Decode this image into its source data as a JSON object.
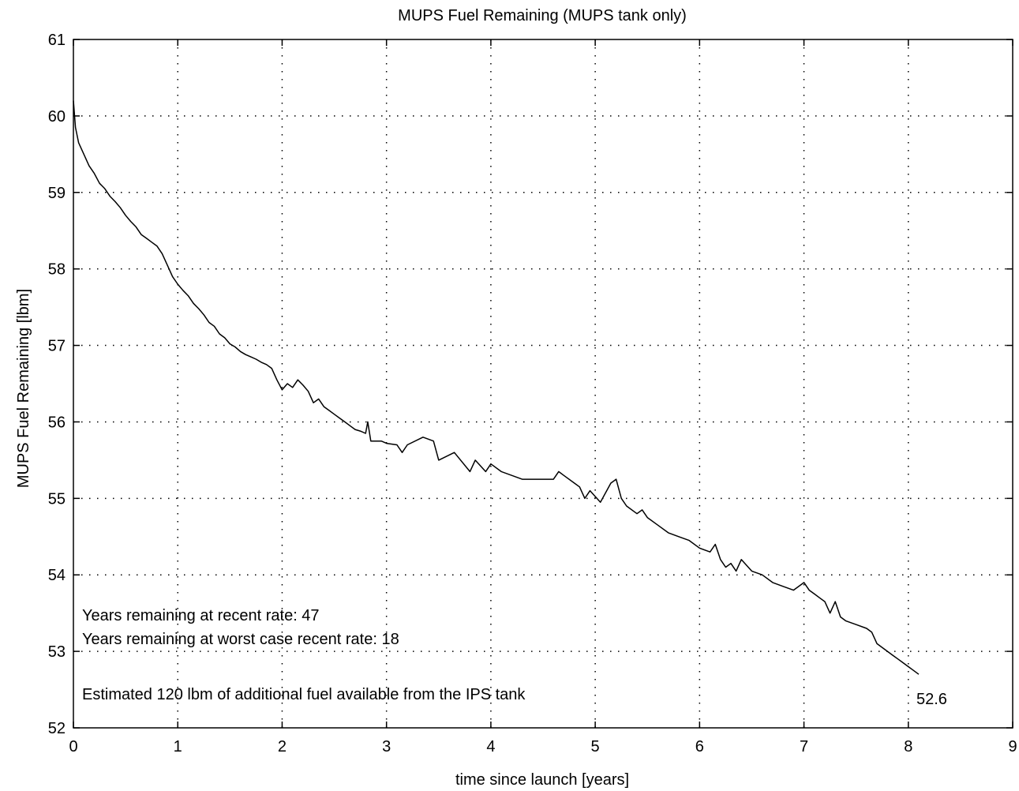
{
  "chart_data": {
    "type": "line",
    "title": "MUPS Fuel Remaining (MUPS tank only)",
    "xlabel": "time since launch [years]",
    "ylabel": "MUPS Fuel Remaining [lbm]",
    "xlim": [
      0,
      9
    ],
    "ylim": [
      52,
      61
    ],
    "xticks": [
      0,
      1,
      2,
      3,
      4,
      5,
      6,
      7,
      8,
      9
    ],
    "yticks": [
      52,
      53,
      54,
      55,
      56,
      57,
      58,
      59,
      60,
      61
    ],
    "grid": true,
    "grid_style": "dotted",
    "series": [
      {
        "style": "solid",
        "x": [
          0.0,
          0.02,
          0.05,
          0.1,
          0.15,
          0.2,
          0.25,
          0.3,
          0.35,
          0.4,
          0.45,
          0.5,
          0.55,
          0.6,
          0.65,
          0.7,
          0.75,
          0.8,
          0.85,
          0.9,
          0.95,
          1.0,
          1.05,
          1.1,
          1.15,
          1.2,
          1.25,
          1.3,
          1.35,
          1.4,
          1.45,
          1.5,
          1.55,
          1.6,
          1.65,
          1.7,
          1.75,
          1.8,
          1.85,
          1.9,
          1.95,
          2.0,
          2.05,
          2.1,
          2.15,
          2.2,
          2.25,
          2.3,
          2.35,
          2.4,
          2.45,
          2.5,
          2.55,
          2.6,
          2.65,
          2.7,
          2.75,
          2.8,
          2.82,
          2.85,
          2.95,
          3.0,
          3.1,
          3.15,
          3.2,
          3.35,
          3.45,
          3.5,
          3.65,
          3.8,
          3.85,
          3.95,
          4.0,
          4.1,
          4.3,
          4.6,
          4.65,
          4.7,
          4.8,
          4.85,
          4.9,
          4.95,
          5.05,
          5.15,
          5.2,
          5.25,
          5.3,
          5.4,
          5.45,
          5.5,
          5.6,
          5.7,
          5.8,
          5.9,
          6.0,
          6.1,
          6.15,
          6.2,
          6.25,
          6.3,
          6.35,
          6.4,
          6.5,
          6.6,
          6.7,
          6.8,
          6.9,
          7.0,
          7.05,
          7.1,
          7.15,
          7.2,
          7.25,
          7.3,
          7.35,
          7.4,
          7.5,
          7.6,
          7.65,
          7.7,
          7.8,
          7.85,
          7.9,
          7.95,
          8.0,
          8.05,
          8.1
        ],
        "y": [
          60.2,
          59.85,
          59.65,
          59.5,
          59.35,
          59.25,
          59.12,
          59.05,
          58.95,
          58.88,
          58.8,
          58.7,
          58.62,
          58.55,
          58.45,
          58.4,
          58.35,
          58.3,
          58.2,
          58.05,
          57.9,
          57.8,
          57.72,
          57.65,
          57.55,
          57.48,
          57.4,
          57.3,
          57.25,
          57.15,
          57.1,
          57.02,
          56.98,
          56.92,
          56.88,
          56.85,
          56.82,
          56.78,
          56.75,
          56.7,
          56.55,
          56.42,
          56.5,
          56.45,
          56.55,
          56.48,
          56.4,
          56.25,
          56.3,
          56.2,
          56.15,
          56.1,
          56.05,
          56.0,
          55.95,
          55.9,
          55.88,
          55.85,
          56.0,
          55.75,
          55.75,
          55.72,
          55.7,
          55.6,
          55.7,
          55.8,
          55.75,
          55.5,
          55.6,
          55.35,
          55.5,
          55.35,
          55.45,
          55.35,
          55.25,
          55.25,
          55.35,
          55.3,
          55.2,
          55.15,
          55.0,
          55.1,
          54.95,
          55.2,
          55.25,
          55.0,
          54.9,
          54.8,
          54.85,
          54.75,
          54.65,
          54.55,
          54.5,
          54.45,
          54.35,
          54.3,
          54.4,
          54.2,
          54.1,
          54.15,
          54.05,
          54.2,
          54.05,
          54.0,
          53.9,
          53.85,
          53.8,
          53.9,
          53.8,
          53.75,
          53.7,
          53.65,
          53.5,
          53.65,
          53.45,
          53.4,
          53.35,
          53.3,
          53.25,
          53.1,
          53.0,
          52.95,
          52.9,
          52.85,
          52.8,
          52.75,
          52.7
        ]
      }
    ],
    "end_value_label": "52.6",
    "annotations": [
      "Years remaining at recent rate: 47",
      "Years remaining at worst case recent rate: 18",
      "Estimated 120 lbm of additional fuel available from the IPS tank"
    ]
  }
}
